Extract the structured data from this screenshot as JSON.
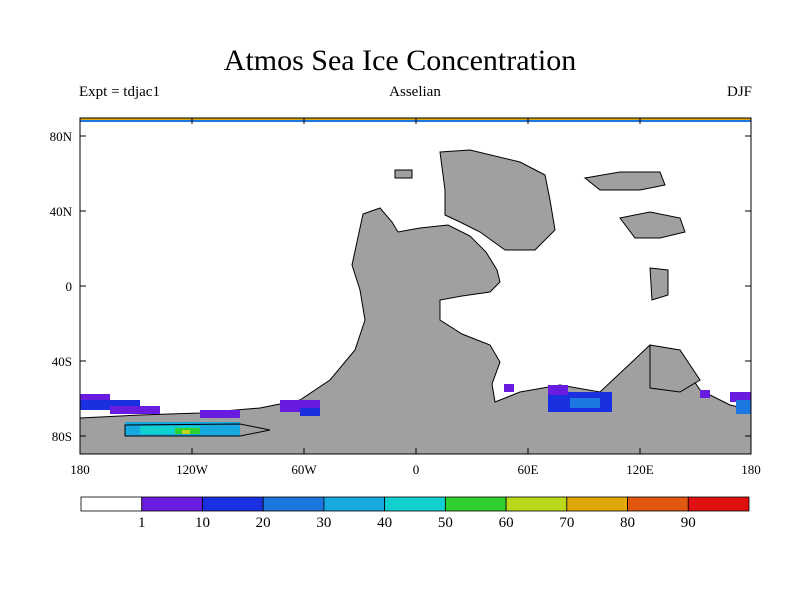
{
  "title": "Atmos Sea Ice Concentration",
  "experiment": "Expt = tdjac1",
  "period": "Asselian",
  "season": "DJF",
  "map": {
    "lat_ticks": [
      "80N",
      "40N",
      "0",
      "40S",
      "80S"
    ],
    "lon_ticks": [
      "180",
      "120W",
      "60W",
      "0",
      "60E",
      "120E",
      "180"
    ],
    "colors": {
      "land": "#a0a0a0",
      "ocean": "#ffffff"
    }
  },
  "colorbar": {
    "labels": [
      "1",
      "10",
      "20",
      "30",
      "40",
      "50",
      "60",
      "70",
      "80",
      "90"
    ],
    "colors": [
      "#ffffff",
      "#6a1be0",
      "#1a30e0",
      "#1a78e0",
      "#18a8e0",
      "#10d0d0",
      "#30d030",
      "#b8d818",
      "#e0a808",
      "#e05810",
      "#e01010"
    ]
  }
}
